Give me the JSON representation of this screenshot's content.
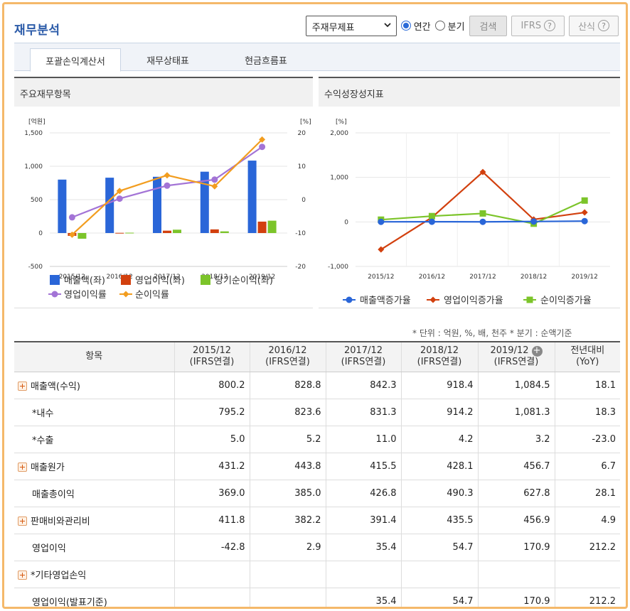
{
  "header": {
    "title": "재무분석",
    "select_value": "주재무제표",
    "radio_annual": "연간",
    "radio_quarter": "분기",
    "search_label": "검색",
    "ifrs_label": "IFRS",
    "formula_label": "산식",
    "help_mark": "?"
  },
  "tabs": [
    "포괄손익계산서",
    "재무상태표",
    "현금흐름표"
  ],
  "colors": {
    "sales": "#2a66d8",
    "op": "#d2400e",
    "net": "#7cc42a",
    "op_rate": "#a374d6",
    "net_rate": "#f29d1f",
    "neg": "#c0101a"
  },
  "chart_data": [
    {
      "type": "bar",
      "title": "주요재무항목",
      "ylabel": "[억원]",
      "y2label": "[%]",
      "ylim": [
        -500,
        1500
      ],
      "yticks": [
        "1,500",
        "1,000",
        "500",
        "0",
        "-500"
      ],
      "y2lim": [
        -20,
        20
      ],
      "y2ticks": [
        "20",
        "10",
        "0",
        "-10",
        "-20"
      ],
      "categories": [
        "2015/12",
        "2016/12",
        "2017/12",
        "2018/12",
        "2019/12"
      ],
      "series": [
        {
          "name": "매출액(좌)",
          "axis": "left",
          "values": [
            800.2,
            828.8,
            842.3,
            918.4,
            1084.5
          ]
        },
        {
          "name": "영업이익(좌)",
          "axis": "left",
          "values": [
            -42.8,
            2.9,
            35.4,
            54.7,
            170.9
          ]
        },
        {
          "name": "당기순이익(좌)",
          "axis": "left",
          "values": [
            -85,
            5,
            50,
            25,
            185
          ]
        },
        {
          "name": "영업이익률",
          "axis": "right",
          "type": "line",
          "values": [
            -5.3,
            0.3,
            4.2,
            6.0,
            15.8
          ]
        },
        {
          "name": "순이익률",
          "axis": "right",
          "type": "line",
          "values": [
            -10.5,
            2.6,
            7.3,
            4.0,
            18.0
          ]
        }
      ],
      "legend_position": "bottom"
    },
    {
      "type": "line",
      "title": "수익성장성지표",
      "ylabel": "[%]",
      "ylim": [
        -1000,
        2000
      ],
      "yticks": [
        "2,000",
        "1,000",
        "0",
        "-1,000"
      ],
      "categories": [
        "2015/12",
        "2016/12",
        "2017/12",
        "2018/12",
        "2019/12"
      ],
      "series": [
        {
          "name": "매출액증가율",
          "values": [
            2,
            3.6,
            1.6,
            9,
            18.1
          ]
        },
        {
          "name": "영업이익증가율",
          "values": [
            -620,
            100,
            1120,
            55,
            212.2
          ]
        },
        {
          "name": "순이익증가율",
          "values": [
            50,
            130,
            190,
            -40,
            480
          ]
        }
      ],
      "legend_position": "bottom"
    }
  ],
  "unit_note": "* 단위 : 억원, %, 배, 천주     * 분기 : 순액기준",
  "table": {
    "headers": [
      {
        "l1": "항목",
        "l2": ""
      },
      {
        "l1": "2015/12",
        "l2": "(IFRS연결)"
      },
      {
        "l1": "2016/12",
        "l2": "(IFRS연결)"
      },
      {
        "l1": "2017/12",
        "l2": "(IFRS연결)"
      },
      {
        "l1": "2018/12",
        "l2": "(IFRS연결)"
      },
      {
        "l1": "2019/12",
        "l2": "(IFRS연결)"
      },
      {
        "l1": "전년대비",
        "l2": "(YoY)"
      }
    ],
    "plus_glyph": "+",
    "rows": [
      {
        "label": "매출액(수익)",
        "expand": true,
        "indent": false,
        "values": [
          "800.2",
          "828.8",
          "842.3",
          "918.4",
          "1,084.5",
          "18.1"
        ]
      },
      {
        "label": "*내수",
        "expand": false,
        "indent": true,
        "values": [
          "795.2",
          "823.6",
          "831.3",
          "914.2",
          "1,081.3",
          "18.3"
        ]
      },
      {
        "label": "*수출",
        "expand": false,
        "indent": true,
        "values": [
          "5.0",
          "5.2",
          "11.0",
          "4.2",
          "3.2",
          "-23.0"
        ]
      },
      {
        "label": "매출원가",
        "expand": true,
        "indent": false,
        "values": [
          "431.2",
          "443.8",
          "415.5",
          "428.1",
          "456.7",
          "6.7"
        ]
      },
      {
        "label": "매출총이익",
        "expand": false,
        "indent": true,
        "values": [
          "369.0",
          "385.0",
          "426.8",
          "490.3",
          "627.8",
          "28.1"
        ]
      },
      {
        "label": "판매비와관리비",
        "expand": true,
        "indent": false,
        "values": [
          "411.8",
          "382.2",
          "391.4",
          "435.5",
          "456.9",
          "4.9"
        ]
      },
      {
        "label": "영업이익",
        "expand": false,
        "indent": true,
        "values": [
          "-42.8",
          "2.9",
          "35.4",
          "54.7",
          "170.9",
          "212.2"
        ]
      },
      {
        "label": "*기타영업손익",
        "expand": true,
        "indent": false,
        "values": [
          "",
          "",
          "",
          "",
          "",
          ""
        ]
      },
      {
        "label": "영업이익(발표기준)",
        "expand": false,
        "indent": true,
        "values": [
          "",
          "",
          "35.4",
          "54.7",
          "170.9",
          "212.2"
        ]
      }
    ]
  }
}
